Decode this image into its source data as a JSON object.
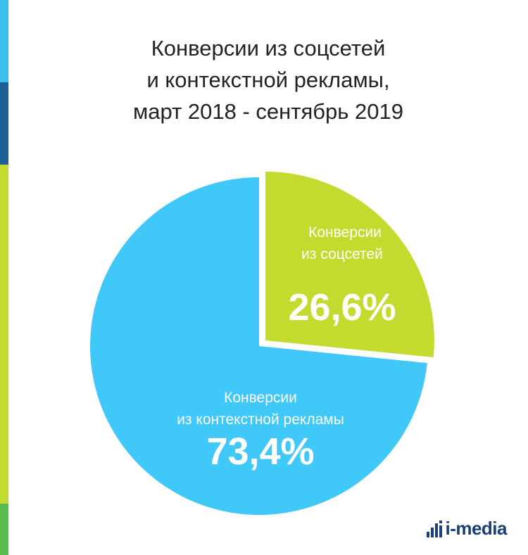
{
  "title": {
    "line1": "Конверсии из соцсетей",
    "line2": "и контекстной рекламы,",
    "line3": "март 2018 - сентябрь 2019"
  },
  "chart_data": {
    "type": "pie",
    "title": "Конверсии из соцсетей и контекстной рекламы, март 2018 - сентябрь 2019",
    "slices": [
      {
        "label_line1": "Конверсии",
        "label_line2": "из соцсетей",
        "value": 26.6,
        "value_label": "26,6%",
        "color": "#c4da2e",
        "exploded": true
      },
      {
        "label_line1": "Конверсии",
        "label_line2": "из контекстной рекламы",
        "value": 73.4,
        "value_label": "73,4%",
        "color": "#40c8f8",
        "exploded": false
      }
    ]
  },
  "logo": {
    "text": "i-media",
    "icon": "bar-chart-logo-icon"
  },
  "colors": {
    "stripe_cyan": "#39c0ec",
    "stripe_navy": "#1a5f96",
    "stripe_lime": "#c4da2e",
    "stripe_green": "#57bd4f",
    "logo_navy": "#1a3e78"
  }
}
